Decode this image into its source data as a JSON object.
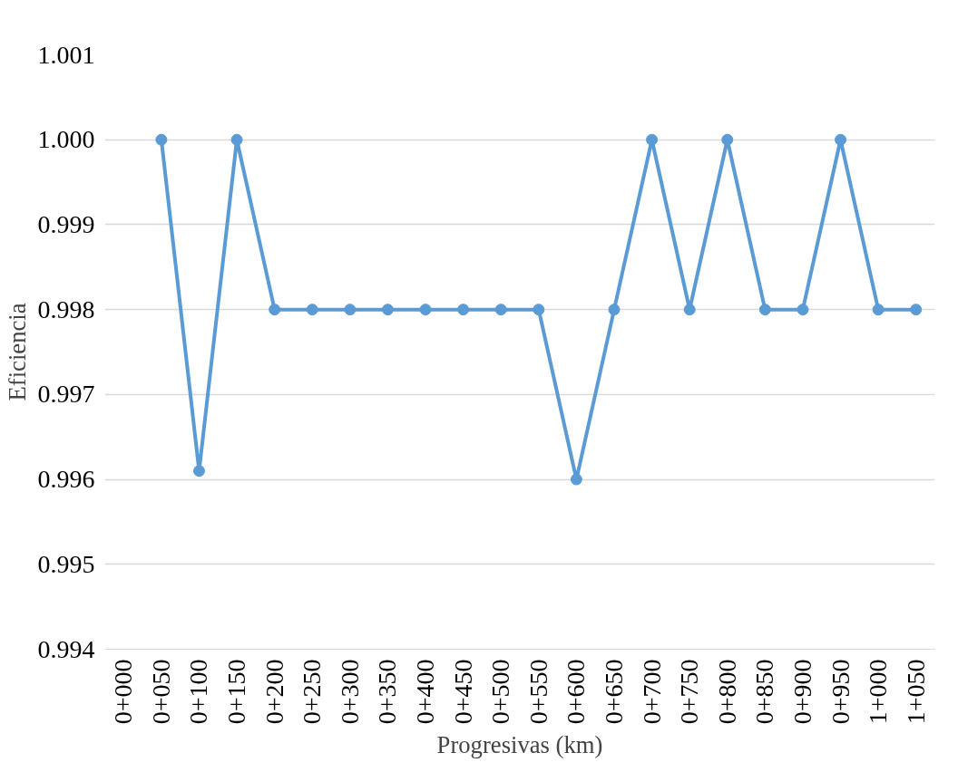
{
  "chart_data": {
    "type": "line",
    "xlabel": "Progresivas (km)",
    "ylabel": "Eficiencia",
    "categories": [
      "0+000",
      "0+050",
      "0+100",
      "0+150",
      "0+200",
      "0+250",
      "0+300",
      "0+350",
      "0+400",
      "0+450",
      "0+500",
      "0+550",
      "0+600",
      "0+650",
      "0+700",
      "0+750",
      "0+800",
      "0+850",
      "0+900",
      "0+950",
      "1+000",
      "1+050"
    ],
    "series": [
      {
        "color": "#5b9bd5",
        "values": [
          null,
          1.0,
          0.9961,
          1.0,
          0.998,
          0.998,
          0.998,
          0.998,
          0.998,
          0.998,
          0.998,
          0.998,
          0.996,
          0.998,
          1.0,
          0.998,
          1.0,
          0.998,
          0.998,
          1.0,
          0.998,
          0.998
        ]
      }
    ],
    "ylim": [
      0.994,
      1.001
    ],
    "yticks": [
      {
        "value": 0.994,
        "label": "0.994"
      },
      {
        "value": 0.995,
        "label": "0.995"
      },
      {
        "value": 0.996,
        "label": "0.996"
      },
      {
        "value": 0.997,
        "label": "0.997"
      },
      {
        "value": 0.998,
        "label": "0.998"
      },
      {
        "value": 0.999,
        "label": "0.999"
      },
      {
        "value": 1.0,
        "label": "1.000"
      },
      {
        "value": 1.001,
        "label": "1.001"
      }
    ],
    "grid": "y",
    "marker": "circle",
    "line_style": "solid"
  }
}
